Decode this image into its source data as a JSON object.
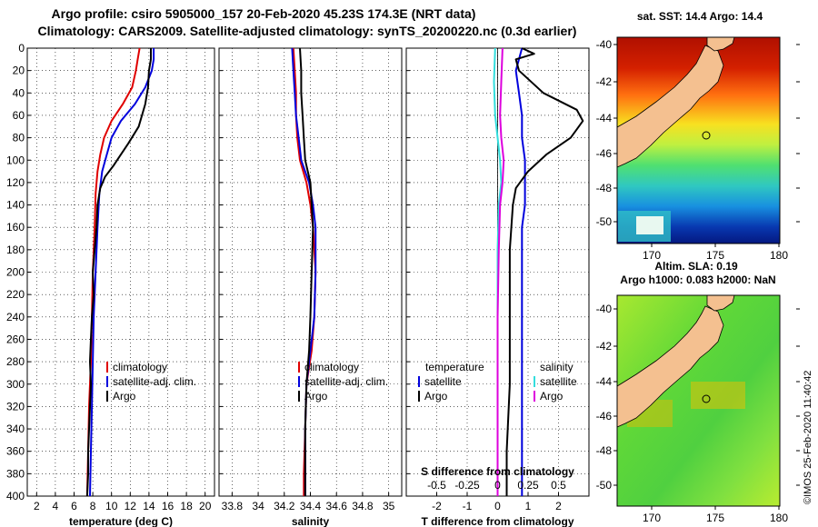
{
  "title": {
    "line1": "Argo profile: csiro 5905000_157 20-Feb-2020 45.23S 174.3E (NRT data)",
    "line2": "Climatology: CARS2009. Satellite-adjusted climatology: synTS_20200220.nc (0.3d earlier)"
  },
  "colors": {
    "climatology": "#e00000",
    "satellite": "#0000dd",
    "argo": "#000000",
    "temp_satellite": "#0000dd",
    "sal_satellite": "#33dddd",
    "sal_argo": "#dd00dd"
  },
  "chart_data": [
    {
      "id": "temperature",
      "type": "line",
      "xlabel": "temperature (deg C)",
      "ylabel": "depth",
      "xlim": [
        1,
        21
      ],
      "ylim": [
        400,
        0
      ],
      "xticks": [
        2,
        4,
        6,
        8,
        10,
        12,
        14,
        16,
        18,
        20
      ],
      "yticks": [
        0,
        20,
        40,
        60,
        80,
        100,
        120,
        140,
        160,
        180,
        200,
        220,
        240,
        260,
        280,
        300,
        320,
        340,
        360,
        380,
        400
      ],
      "grid": true,
      "legend": [
        "climatology",
        "satellite-adj. clim.",
        "Argo"
      ],
      "series": [
        {
          "name": "climatology",
          "color": "#e00000",
          "points": [
            [
              13.0,
              0
            ],
            [
              12.8,
              10
            ],
            [
              12.6,
              20
            ],
            [
              12.2,
              35
            ],
            [
              11.2,
              50
            ],
            [
              10.0,
              65
            ],
            [
              9.2,
              80
            ],
            [
              8.8,
              95
            ],
            [
              8.5,
              110
            ],
            [
              8.3,
              130
            ],
            [
              8.2,
              160
            ],
            [
              8.0,
              200
            ],
            [
              7.9,
              240
            ],
            [
              7.8,
              280
            ],
            [
              7.6,
              320
            ],
            [
              7.5,
              360
            ],
            [
              7.4,
              400
            ]
          ]
        },
        {
          "name": "satellite-adj. clim.",
          "color": "#0000dd",
          "points": [
            [
              14.5,
              0
            ],
            [
              14.5,
              10
            ],
            [
              14.3,
              20
            ],
            [
              13.6,
              35
            ],
            [
              12.5,
              50
            ],
            [
              11.0,
              65
            ],
            [
              10.0,
              80
            ],
            [
              9.5,
              95
            ],
            [
              9.0,
              110
            ],
            [
              8.7,
              130
            ],
            [
              8.5,
              160
            ],
            [
              8.3,
              200
            ],
            [
              8.1,
              240
            ],
            [
              8.0,
              280
            ],
            [
              7.9,
              320
            ],
            [
              7.8,
              360
            ],
            [
              7.7,
              400
            ]
          ]
        },
        {
          "name": "Argo",
          "color": "#000000",
          "points": [
            [
              14.2,
              0
            ],
            [
              14.2,
              10
            ],
            [
              14.0,
              20
            ],
            [
              13.9,
              35
            ],
            [
              13.6,
              50
            ],
            [
              12.9,
              70
            ],
            [
              11.8,
              85
            ],
            [
              11.0,
              95
            ],
            [
              10.2,
              105
            ],
            [
              9.3,
              115
            ],
            [
              8.8,
              125
            ],
            [
              8.5,
              140
            ],
            [
              8.4,
              160
            ],
            [
              8.2,
              180
            ],
            [
              8.0,
              200
            ],
            [
              8.1,
              220
            ],
            [
              7.9,
              240
            ],
            [
              7.8,
              260
            ],
            [
              7.7,
              280
            ],
            [
              7.8,
              300
            ],
            [
              7.7,
              320
            ],
            [
              7.6,
              340
            ],
            [
              7.5,
              360
            ],
            [
              7.5,
              380
            ],
            [
              7.4,
              400
            ]
          ]
        }
      ]
    },
    {
      "id": "salinity",
      "type": "line",
      "xlabel": "salinity",
      "ylabel": "depth",
      "xlim": [
        33.7,
        35.1
      ],
      "ylim": [
        400,
        0
      ],
      "xticks": [
        33.8,
        34,
        34.2,
        34.4,
        34.6,
        34.8,
        35
      ],
      "grid": true,
      "legend": [
        "climatology",
        "satellite-adj. clim.",
        "Argo"
      ],
      "series": [
        {
          "name": "climatology",
          "color": "#e00000",
          "points": [
            [
              34.27,
              0
            ],
            [
              34.28,
              20
            ],
            [
              34.29,
              40
            ],
            [
              34.29,
              60
            ],
            [
              34.3,
              80
            ],
            [
              34.32,
              100
            ],
            [
              34.37,
              120
            ],
            [
              34.4,
              140
            ],
            [
              34.42,
              160
            ],
            [
              34.44,
              200
            ],
            [
              34.43,
              240
            ],
            [
              34.41,
              270
            ],
            [
              34.37,
              300
            ],
            [
              34.36,
              340
            ],
            [
              34.35,
              380
            ],
            [
              34.35,
              400
            ]
          ]
        },
        {
          "name": "satellite-adj. clim.",
          "color": "#0000dd",
          "points": [
            [
              34.26,
              0
            ],
            [
              34.27,
              20
            ],
            [
              34.28,
              40
            ],
            [
              34.29,
              60
            ],
            [
              34.31,
              80
            ],
            [
              34.33,
              100
            ],
            [
              34.39,
              120
            ],
            [
              34.42,
              140
            ],
            [
              34.44,
              160
            ],
            [
              34.44,
              200
            ],
            [
              34.43,
              240
            ],
            [
              34.4,
              270
            ],
            [
              34.37,
              300
            ],
            [
              34.36,
              340
            ],
            [
              34.36,
              380
            ],
            [
              34.36,
              400
            ]
          ]
        },
        {
          "name": "Argo",
          "color": "#000000",
          "points": [
            [
              34.32,
              0
            ],
            [
              34.33,
              20
            ],
            [
              34.33,
              40
            ],
            [
              34.34,
              60
            ],
            [
              34.35,
              80
            ],
            [
              34.36,
              100
            ],
            [
              34.4,
              120
            ],
            [
              34.41,
              140
            ],
            [
              34.42,
              160
            ],
            [
              34.41,
              200
            ],
            [
              34.4,
              240
            ],
            [
              34.39,
              270
            ],
            [
              34.37,
              300
            ],
            [
              34.36,
              340
            ],
            [
              34.36,
              380
            ],
            [
              34.36,
              400
            ]
          ]
        }
      ]
    },
    {
      "id": "differences",
      "type": "line",
      "xlabel": "T difference from climatology",
      "x2label": "S difference from climatology",
      "ylabel": "depth",
      "xlim": [
        -3,
        3
      ],
      "ylim": [
        400,
        0
      ],
      "xticks": [
        -2,
        -1,
        0,
        1,
        2
      ],
      "x2ticks": [
        -0.5,
        -0.25,
        0,
        0.25,
        0.5
      ],
      "x2lim": [
        -0.75,
        0.75
      ],
      "grid": true,
      "legend_groups": [
        "temperature",
        "salinity"
      ],
      "legend": [
        "satellite",
        "Argo",
        "satellite",
        "Argo"
      ],
      "series": [
        {
          "name": "temperature satellite",
          "color": "#0000dd",
          "points": [
            [
              0.8,
              0
            ],
            [
              0.7,
              10
            ],
            [
              0.6,
              20
            ],
            [
              0.7,
              40
            ],
            [
              0.8,
              60
            ],
            [
              0.8,
              80
            ],
            [
              0.9,
              100
            ],
            [
              0.9,
              120
            ],
            [
              0.9,
              140
            ],
            [
              0.8,
              160
            ],
            [
              0.8,
              200
            ],
            [
              0.8,
              240
            ],
            [
              0.8,
              280
            ],
            [
              0.8,
              320
            ],
            [
              0.8,
              360
            ],
            [
              0.8,
              400
            ]
          ]
        },
        {
          "name": "temperature Argo",
          "color": "#000000",
          "points": [
            [
              0.8,
              0
            ],
            [
              1.2,
              5
            ],
            [
              0.6,
              10
            ],
            [
              0.7,
              20
            ],
            [
              1.5,
              40
            ],
            [
              2.6,
              55
            ],
            [
              2.8,
              65
            ],
            [
              2.4,
              80
            ],
            [
              1.6,
              95
            ],
            [
              1.0,
              110
            ],
            [
              0.6,
              125
            ],
            [
              0.5,
              140
            ],
            [
              0.4,
              180
            ],
            [
              0.4,
              240
            ],
            [
              0.4,
              300
            ],
            [
              0.3,
              360
            ],
            [
              0.3,
              400
            ]
          ]
        },
        {
          "name": "salinity satellite",
          "color": "#33dddd",
          "points": [
            [
              -0.02,
              0
            ],
            [
              -0.03,
              30
            ],
            [
              -0.02,
              60
            ],
            [
              0.0,
              80
            ],
            [
              0.02,
              100
            ],
            [
              0.03,
              120
            ],
            [
              0.01,
              140
            ],
            [
              0.0,
              180
            ],
            [
              0.0,
              240
            ],
            [
              0.0,
              300
            ],
            [
              0.0,
              360
            ],
            [
              0.0,
              400
            ]
          ]
        },
        {
          "name": "salinity Argo",
          "color": "#dd00dd",
          "points": [
            [
              0.04,
              0
            ],
            [
              0.03,
              30
            ],
            [
              0.02,
              60
            ],
            [
              0.03,
              80
            ],
            [
              0.05,
              100
            ],
            [
              0.04,
              120
            ],
            [
              0.02,
              140
            ],
            [
              0.01,
              180
            ],
            [
              0.0,
              240
            ],
            [
              0.0,
              300
            ],
            [
              0.0,
              360
            ],
            [
              0.0,
              400
            ]
          ]
        }
      ]
    }
  ],
  "maps": {
    "lon_ticks": [
      "170",
      "175",
      "180"
    ],
    "lat_ticks": [
      "-40",
      "-42",
      "-44",
      "-46",
      "-48",
      "-50"
    ],
    "sst": {
      "title": "sat. SST: 14.4 Argo: 14.4"
    },
    "sla": {
      "title_line1": "Altim. SLA: 0.19",
      "title_line2": "Argo h1000: 0.083 h2000: NaN"
    }
  },
  "stamp": "©IMOS 25-Feb-2020 11:40:42"
}
